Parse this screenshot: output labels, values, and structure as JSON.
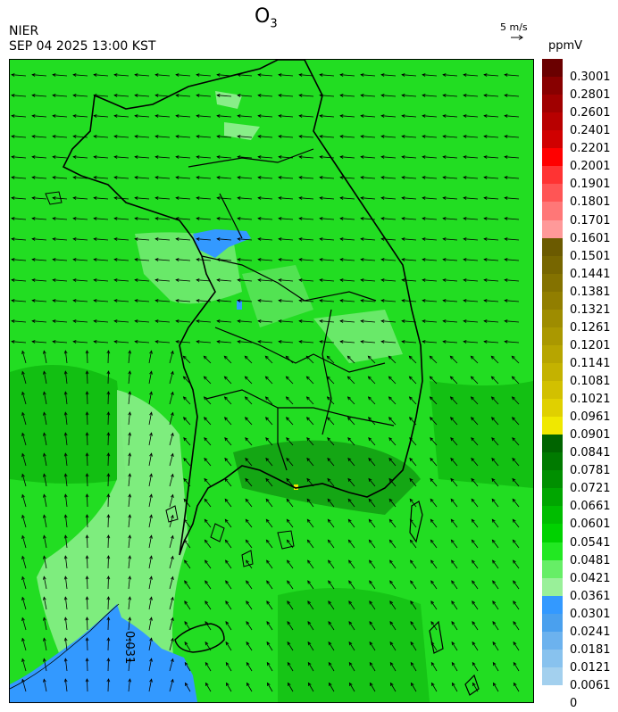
{
  "header": {
    "title": "O",
    "title_sub": "3",
    "org": "NIER",
    "timestamp": "SEP 04 2025 13:00 KST",
    "ref_vector_label": "5 m/s",
    "unit": "ppmV"
  },
  "map": {
    "contour_label": "0.031",
    "background_color": "#22dd22"
  },
  "colorbar": {
    "labels": [
      "0.3001",
      "0.2801",
      "0.2601",
      "0.2401",
      "0.2201",
      "0.2001",
      "0.1901",
      "0.1801",
      "0.1701",
      "0.1601",
      "0.1501",
      "0.1441",
      "0.1381",
      "0.1321",
      "0.1261",
      "0.1201",
      "0.1141",
      "0.1081",
      "0.1021",
      "0.0961",
      "0.0901",
      "0.0841",
      "0.0781",
      "0.0721",
      "0.0661",
      "0.0601",
      "0.0541",
      "0.0481",
      "0.0421",
      "0.0361",
      "0.0301",
      "0.0241",
      "0.0181",
      "0.0121",
      "0.0061",
      "0"
    ],
    "colors": [
      "#6a0000",
      "#880000",
      "#a00000",
      "#b80000",
      "#d00000",
      "#ff0000",
      "#ff3333",
      "#ff5555",
      "#ff7777",
      "#ff9999",
      "#6b5a00",
      "#776600",
      "#847200",
      "#917e00",
      "#9e8c00",
      "#aa9800",
      "#b7a500",
      "#c4b200",
      "#d2c000",
      "#e0d000",
      "#f0e800",
      "#006400",
      "#007a00",
      "#008f00",
      "#00a600",
      "#00bd00",
      "#00d200",
      "#22e822",
      "#66ee66",
      "#99f099",
      "#3399ff",
      "#4aa0ee",
      "#6cb2ee",
      "#88c2ee",
      "#a3d0ee"
    ]
  }
}
